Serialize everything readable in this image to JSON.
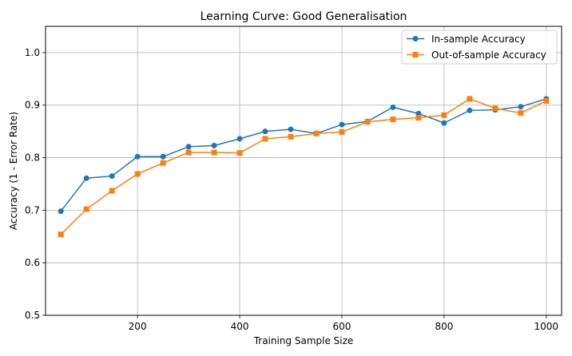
{
  "chart_data": {
    "type": "line",
    "title": "Learning Curve: Good Generalisation",
    "xlabel": "Training Sample Size",
    "ylabel": "Accuracy (1 - Error Rate)",
    "xlim": [
      20,
      1030
    ],
    "ylim": [
      0.5,
      1.05
    ],
    "xticks": [
      200,
      400,
      600,
      800,
      1000
    ],
    "yticks": [
      0.5,
      0.6,
      0.7,
      0.8,
      0.9,
      1.0
    ],
    "xtick_labels": [
      "200",
      "400",
      "600",
      "800",
      "1000"
    ],
    "ytick_labels": [
      "0.5",
      "0.6",
      "0.7",
      "0.8",
      "0.9",
      "1.0"
    ],
    "grid": true,
    "legend_position": "top-right",
    "x": [
      50,
      100,
      150,
      200,
      250,
      300,
      350,
      400,
      450,
      500,
      550,
      600,
      650,
      700,
      750,
      800,
      850,
      900,
      950,
      1000
    ],
    "series": [
      {
        "name": "In-sample Accuracy",
        "color": "#1f77b4",
        "marker": "circle",
        "values": [
          0.698,
          0.761,
          0.765,
          0.802,
          0.802,
          0.821,
          0.823,
          0.836,
          0.85,
          0.854,
          0.846,
          0.863,
          0.869,
          0.896,
          0.884,
          0.866,
          0.89,
          0.891,
          0.897,
          0.912
        ]
      },
      {
        "name": "Out-of-sample Accuracy",
        "color": "#ff7f0e",
        "marker": "square",
        "values": [
          0.654,
          0.702,
          0.737,
          0.769,
          0.79,
          0.81,
          0.81,
          0.809,
          0.836,
          0.84,
          0.846,
          0.849,
          0.868,
          0.873,
          0.876,
          0.881,
          0.912,
          0.894,
          0.885,
          0.908
        ]
      }
    ]
  }
}
